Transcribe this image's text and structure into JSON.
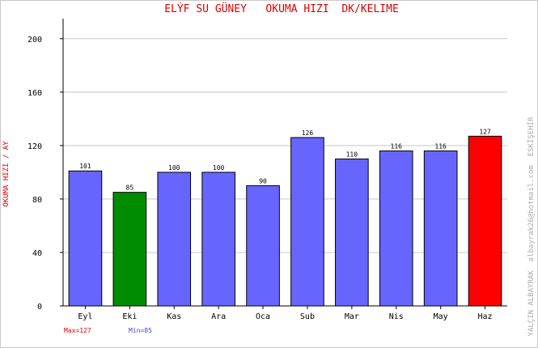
{
  "chart_data": {
    "type": "bar",
    "title": "ELÝF SU GÜNEY   OKUMA HIZI  DK/KELIME",
    "ylabel": "OKUMA HIZI / AY",
    "xlabel": "",
    "categories": [
      "Eyl",
      "Eki",
      "Kas",
      "Ara",
      "Oca",
      "Sub",
      "Mar",
      "Nis",
      "May",
      "Haz"
    ],
    "values": [
      101,
      85,
      100,
      100,
      90,
      126,
      110,
      116,
      116,
      127
    ],
    "ylim": [
      0,
      215
    ],
    "yticks": [
      0,
      40,
      80,
      120,
      160,
      200
    ],
    "grid": true,
    "bar_colors": [
      "#6666ff",
      "#008c00",
      "#6666ff",
      "#6666ff",
      "#6666ff",
      "#6666ff",
      "#6666ff",
      "#6666ff",
      "#6666ff",
      "#ff0000"
    ],
    "max_label": "Max=127",
    "min_label": "Min=85",
    "side_credit": "YALÇIN ALBAYRAK  albayrak26@hotmail.com  ESKİŞEHİR",
    "colors": {
      "title": "#dd0000",
      "ylabel": "#dd0000",
      "max": "#dd0000",
      "min": "#4444dd",
      "default_bar": "#6666ff",
      "credit": "#aaaaaa"
    }
  }
}
